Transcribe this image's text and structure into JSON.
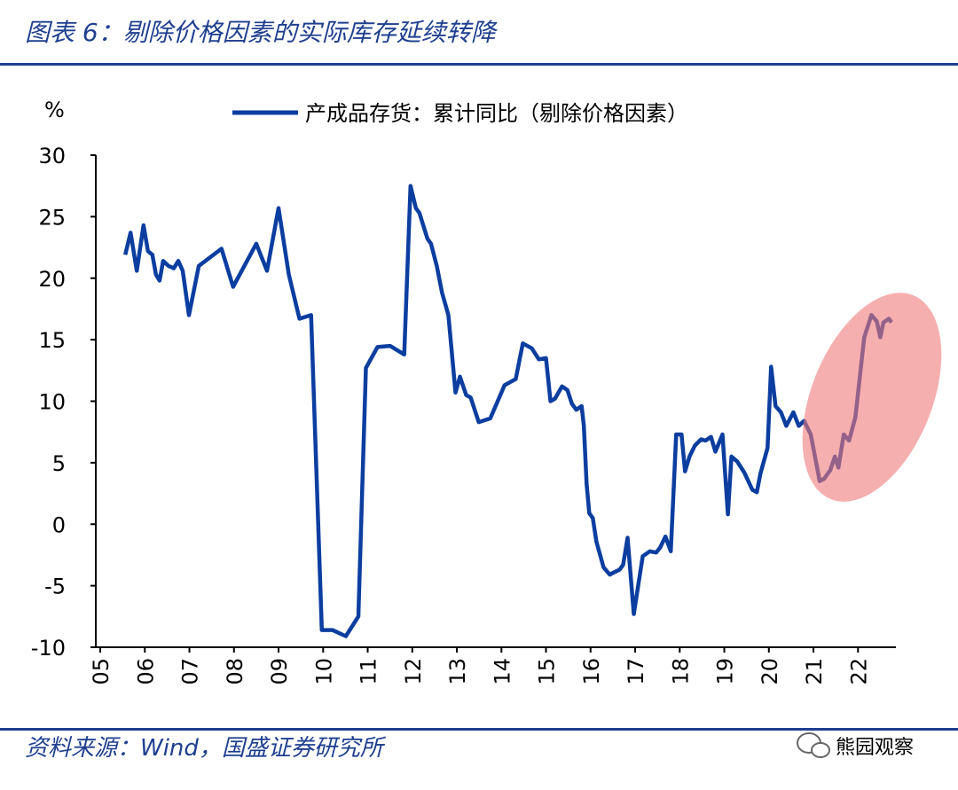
{
  "chart_data": {
    "type": "line",
    "title": "图表 6：剔除价格因素的实际库存延续转降",
    "y_label": "%",
    "source": "资料来源：Wind，国盛证券研究所",
    "watermark": "熊园观察",
    "xlim": [
      4.9,
      22.85
    ],
    "ylim": [
      -10,
      30
    ],
    "yticks": [
      -10,
      -5,
      0,
      5,
      10,
      15,
      20,
      25,
      30
    ],
    "xticks": [
      {
        "value": 5,
        "label": "05"
      },
      {
        "value": 6,
        "label": "06"
      },
      {
        "value": 7,
        "label": "07"
      },
      {
        "value": 8,
        "label": "08"
      },
      {
        "value": 9,
        "label": "09"
      },
      {
        "value": 10,
        "label": "10"
      },
      {
        "value": 11,
        "label": "11"
      },
      {
        "value": 12,
        "label": "12"
      },
      {
        "value": 13,
        "label": "13"
      },
      {
        "value": 14,
        "label": "14"
      },
      {
        "value": 15,
        "label": "15"
      },
      {
        "value": 16,
        "label": "16"
      },
      {
        "value": 17,
        "label": "17"
      },
      {
        "value": 18,
        "label": "18"
      },
      {
        "value": 19,
        "label": "19"
      },
      {
        "value": 20,
        "label": "20"
      },
      {
        "value": 21,
        "label": "21"
      },
      {
        "value": 22,
        "label": "22"
      }
    ],
    "x": [
      5.56,
      5.68,
      5.82,
      5.97,
      6.07,
      6.17,
      6.25,
      6.33,
      6.41,
      6.53,
      6.65,
      6.75,
      6.85,
      6.99,
      7.21,
      7.72,
      7.98,
      8.5,
      8.74,
      9.0,
      9.23,
      9.47,
      9.73,
      9.97,
      10.21,
      10.51,
      10.79,
      10.96,
      11.22,
      11.5,
      11.82,
      11.96,
      12.08,
      12.16,
      12.34,
      12.42,
      12.55,
      12.67,
      12.81,
      12.97,
      13.07,
      13.21,
      13.31,
      13.49,
      13.75,
      14.07,
      14.22,
      14.32,
      14.48,
      14.68,
      14.84,
      15.0,
      15.1,
      15.2,
      15.36,
      15.48,
      15.58,
      15.68,
      15.8,
      15.85,
      15.91,
      15.97,
      16.05,
      16.13,
      16.29,
      16.43,
      16.53,
      16.65,
      16.73,
      16.83,
      16.97,
      17.17,
      17.33,
      17.47,
      17.56,
      17.68,
      17.8,
      17.92,
      18.04,
      18.12,
      18.22,
      18.34,
      18.48,
      18.58,
      18.7,
      18.8,
      18.96,
      19.08,
      19.16,
      19.29,
      19.45,
      19.63,
      19.73,
      19.81,
      19.97,
      20.05,
      20.15,
      20.27,
      20.39,
      20.55,
      20.67,
      20.79,
      20.94,
      21.14,
      21.24,
      21.38,
      21.48,
      21.56,
      21.68,
      21.8,
      21.94,
      22.14,
      22.3,
      22.42,
      22.5,
      22.57,
      22.69,
      22.75
    ],
    "series": [
      {
        "name": "产成品存货：累计同比（剔除价格因素）",
        "color": "#0c3ea0",
        "values": [
          21.9,
          23.7,
          20.6,
          24.3,
          22.2,
          21.9,
          20.3,
          19.8,
          21.4,
          21.0,
          20.8,
          21.4,
          20.6,
          17.0,
          21.0,
          22.4,
          19.3,
          22.8,
          20.6,
          25.7,
          20.3,
          16.7,
          17.0,
          -8.6,
          -8.6,
          -9.1,
          -7.5,
          12.7,
          14.4,
          14.5,
          13.8,
          27.5,
          25.7,
          25.3,
          23.2,
          22.8,
          21.0,
          18.8,
          17.0,
          10.7,
          12.0,
          10.5,
          10.3,
          8.3,
          8.6,
          11.3,
          11.6,
          11.8,
          14.7,
          14.3,
          13.4,
          13.5,
          10.0,
          10.2,
          11.2,
          10.9,
          9.8,
          9.3,
          9.6,
          8.0,
          3.3,
          0.9,
          0.5,
          -1.4,
          -3.5,
          -4.1,
          -3.9,
          -3.7,
          -3.3,
          -1.1,
          -7.3,
          -2.6,
          -2.2,
          -2.3,
          -1.9,
          -1.0,
          -2.2,
          7.3,
          7.3,
          4.3,
          5.5,
          6.4,
          6.9,
          6.8,
          7.1,
          5.9,
          7.3,
          0.8,
          5.5,
          5.1,
          4.2,
          2.8,
          2.6,
          4.1,
          6.2,
          12.8,
          9.6,
          9.1,
          8.0,
          9.1,
          8.0,
          8.4,
          7.3,
          3.5,
          3.7,
          4.4,
          5.5,
          4.6,
          7.3,
          6.8,
          8.7,
          15.2,
          17.0,
          16.5,
          15.2,
          16.4,
          16.7,
          16.4
        ]
      }
    ]
  }
}
